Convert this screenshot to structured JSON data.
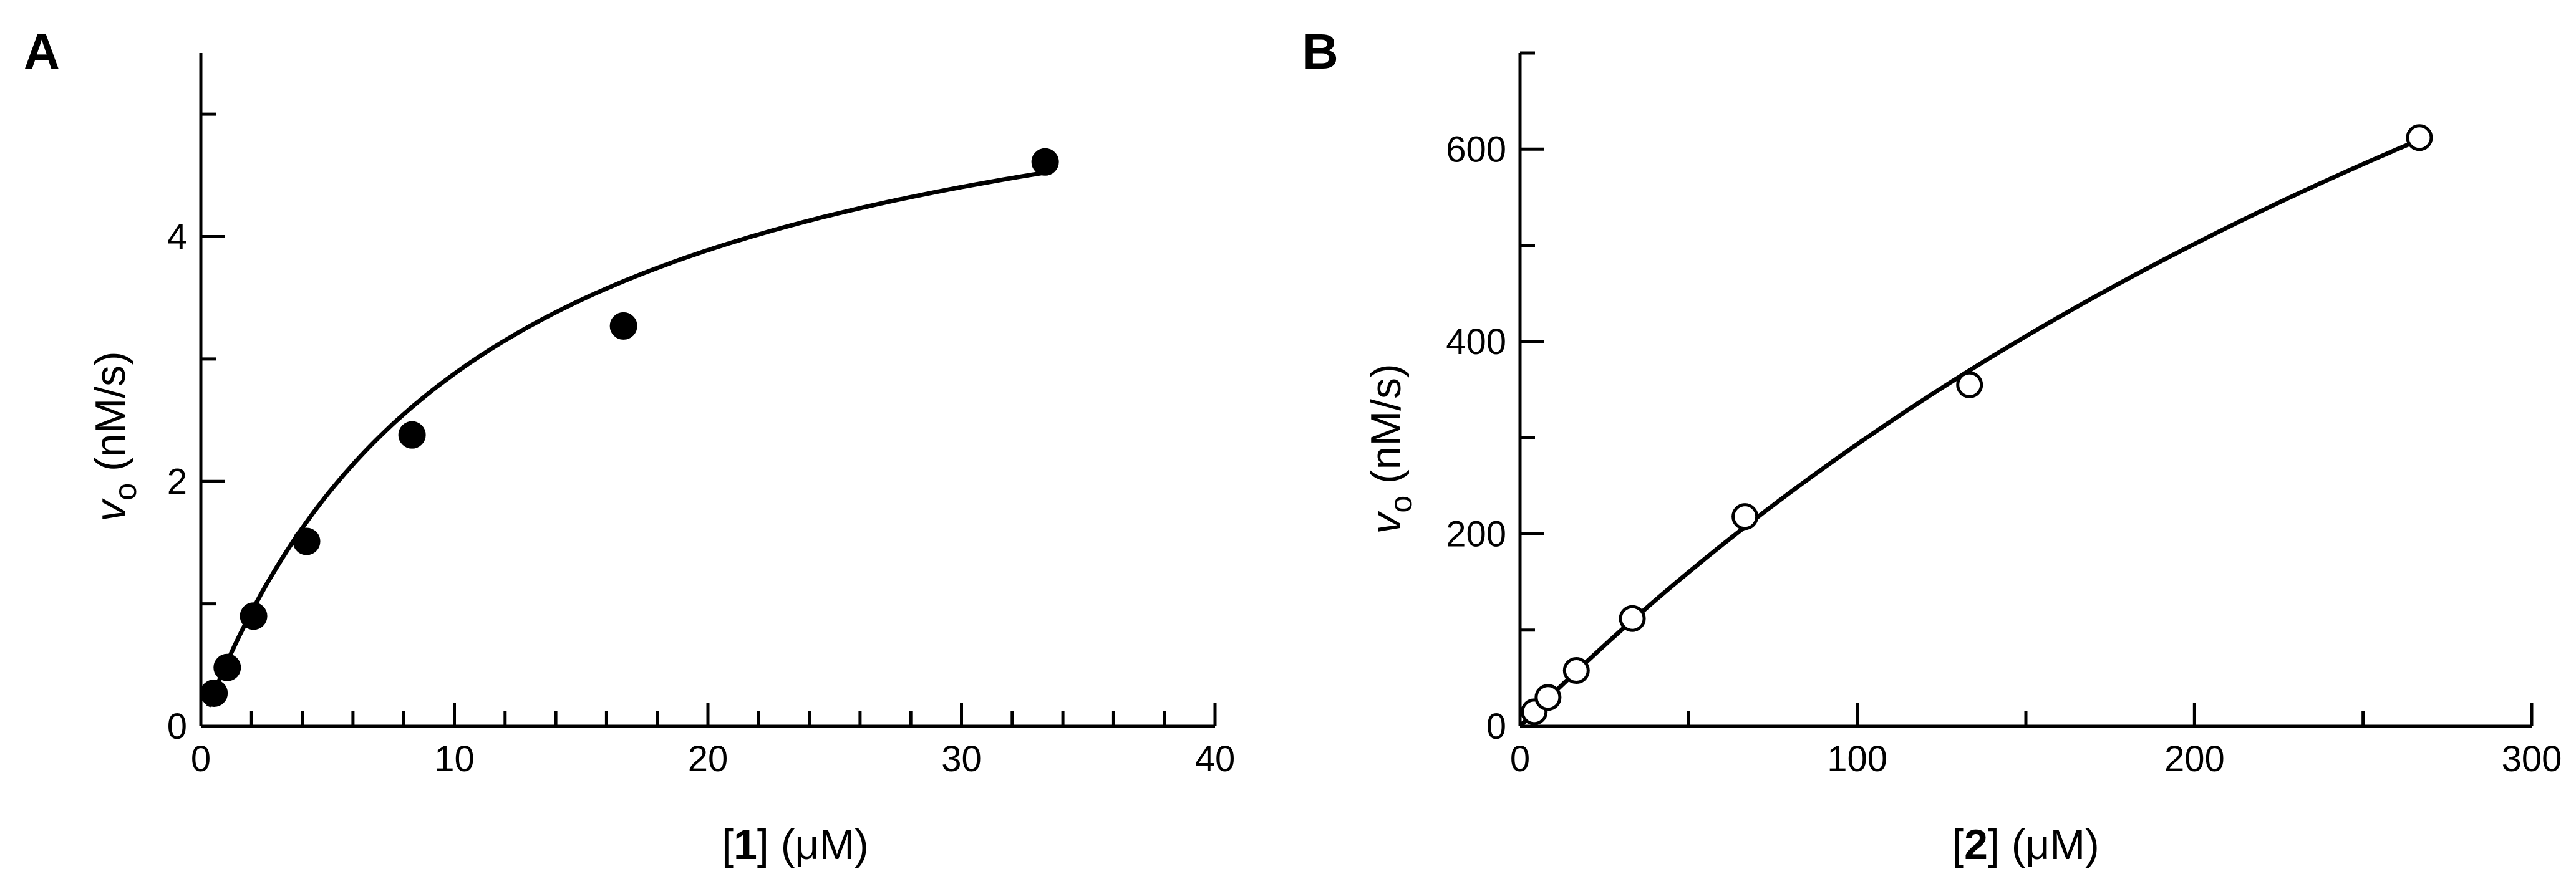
{
  "chart_data": [
    {
      "type": "scatter",
      "panel": "A",
      "xlabel": {
        "open": "[",
        "bold": "1",
        "close": "] (μM)"
      },
      "ylabel": {
        "var": "v",
        "sub": "o",
        "unit": " (nM/s)"
      },
      "xlim": [
        0,
        40
      ],
      "ylim": [
        0,
        5.5
      ],
      "x_ticks": [
        0,
        10,
        20,
        30,
        40
      ],
      "x_minor_step": 2,
      "y_ticks": [
        0,
        2,
        4
      ],
      "y_minor_step": 1,
      "marker": "filled-circle",
      "points": [
        {
          "x": 0.52,
          "y": 0.27
        },
        {
          "x": 1.04,
          "y": 0.48
        },
        {
          "x": 2.08,
          "y": 0.9
        },
        {
          "x": 4.17,
          "y": 1.51
        },
        {
          "x": 8.33,
          "y": 2.38
        },
        {
          "x": 16.67,
          "y": 3.27
        },
        {
          "x": 33.3,
          "y": 4.61
        }
      ],
      "fit": {
        "model": "michaelis-menten",
        "vmax": 5.99,
        "km": 10.8,
        "x_range": [
          0.3,
          33.3
        ]
      }
    },
    {
      "type": "scatter",
      "panel": "B",
      "xlabel": {
        "open": "[",
        "bold": "2",
        "close": "] (μM)"
      },
      "ylabel": {
        "var": "v",
        "sub": "o",
        "unit": " (nM/s)"
      },
      "xlim": [
        0,
        300
      ],
      "ylim": [
        0,
        700
      ],
      "x_ticks": [
        0,
        100,
        200,
        300
      ],
      "x_minor_step": 50,
      "y_ticks": [
        0,
        200,
        400,
        600
      ],
      "y_minor_step": 100,
      "marker": "open-circle",
      "points": [
        {
          "x": 4.2,
          "y": 15
        },
        {
          "x": 8.3,
          "y": 30
        },
        {
          "x": 16.7,
          "y": 58
        },
        {
          "x": 33.3,
          "y": 112
        },
        {
          "x": 66.7,
          "y": 218
        },
        {
          "x": 133.3,
          "y": 355
        },
        {
          "x": 266.7,
          "y": 612
        }
      ],
      "fit": {
        "model": "michaelis-menten",
        "vmax": 1730,
        "km": 490,
        "x_range": [
          0,
          266.7
        ]
      }
    }
  ]
}
